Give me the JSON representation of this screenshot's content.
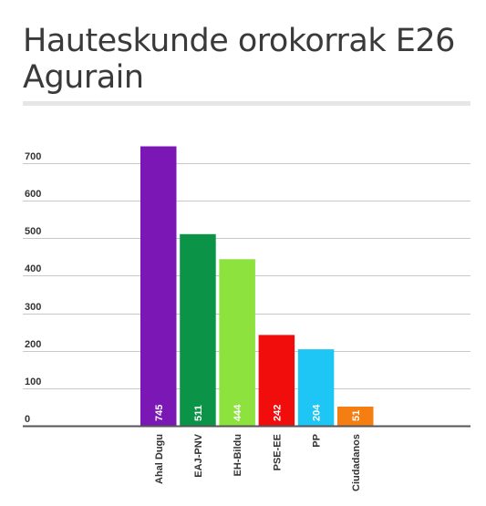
{
  "header": {
    "title_line1": "Hauteskunde orokorrak E26",
    "title_line2": "Agurain"
  },
  "chart_data": {
    "type": "bar",
    "title": "Hauteskunde orokorrak E26 Agurain",
    "xlabel": "",
    "ylabel": "",
    "ylim": [
      0,
      700
    ],
    "yticks": [
      0,
      100,
      200,
      300,
      400,
      500,
      600,
      700
    ],
    "grid": true,
    "categories": [
      "Ahal Dugu",
      "EAJ-PNV",
      "EH-Bildu",
      "PSE-EE",
      "PP",
      "Ciudadanos"
    ],
    "values": [
      745,
      511,
      444,
      242,
      204,
      51
    ],
    "colors": [
      "#7b18b5",
      "#0b9447",
      "#8de23e",
      "#f20d0d",
      "#1dc6f5",
      "#f47e12"
    ]
  }
}
